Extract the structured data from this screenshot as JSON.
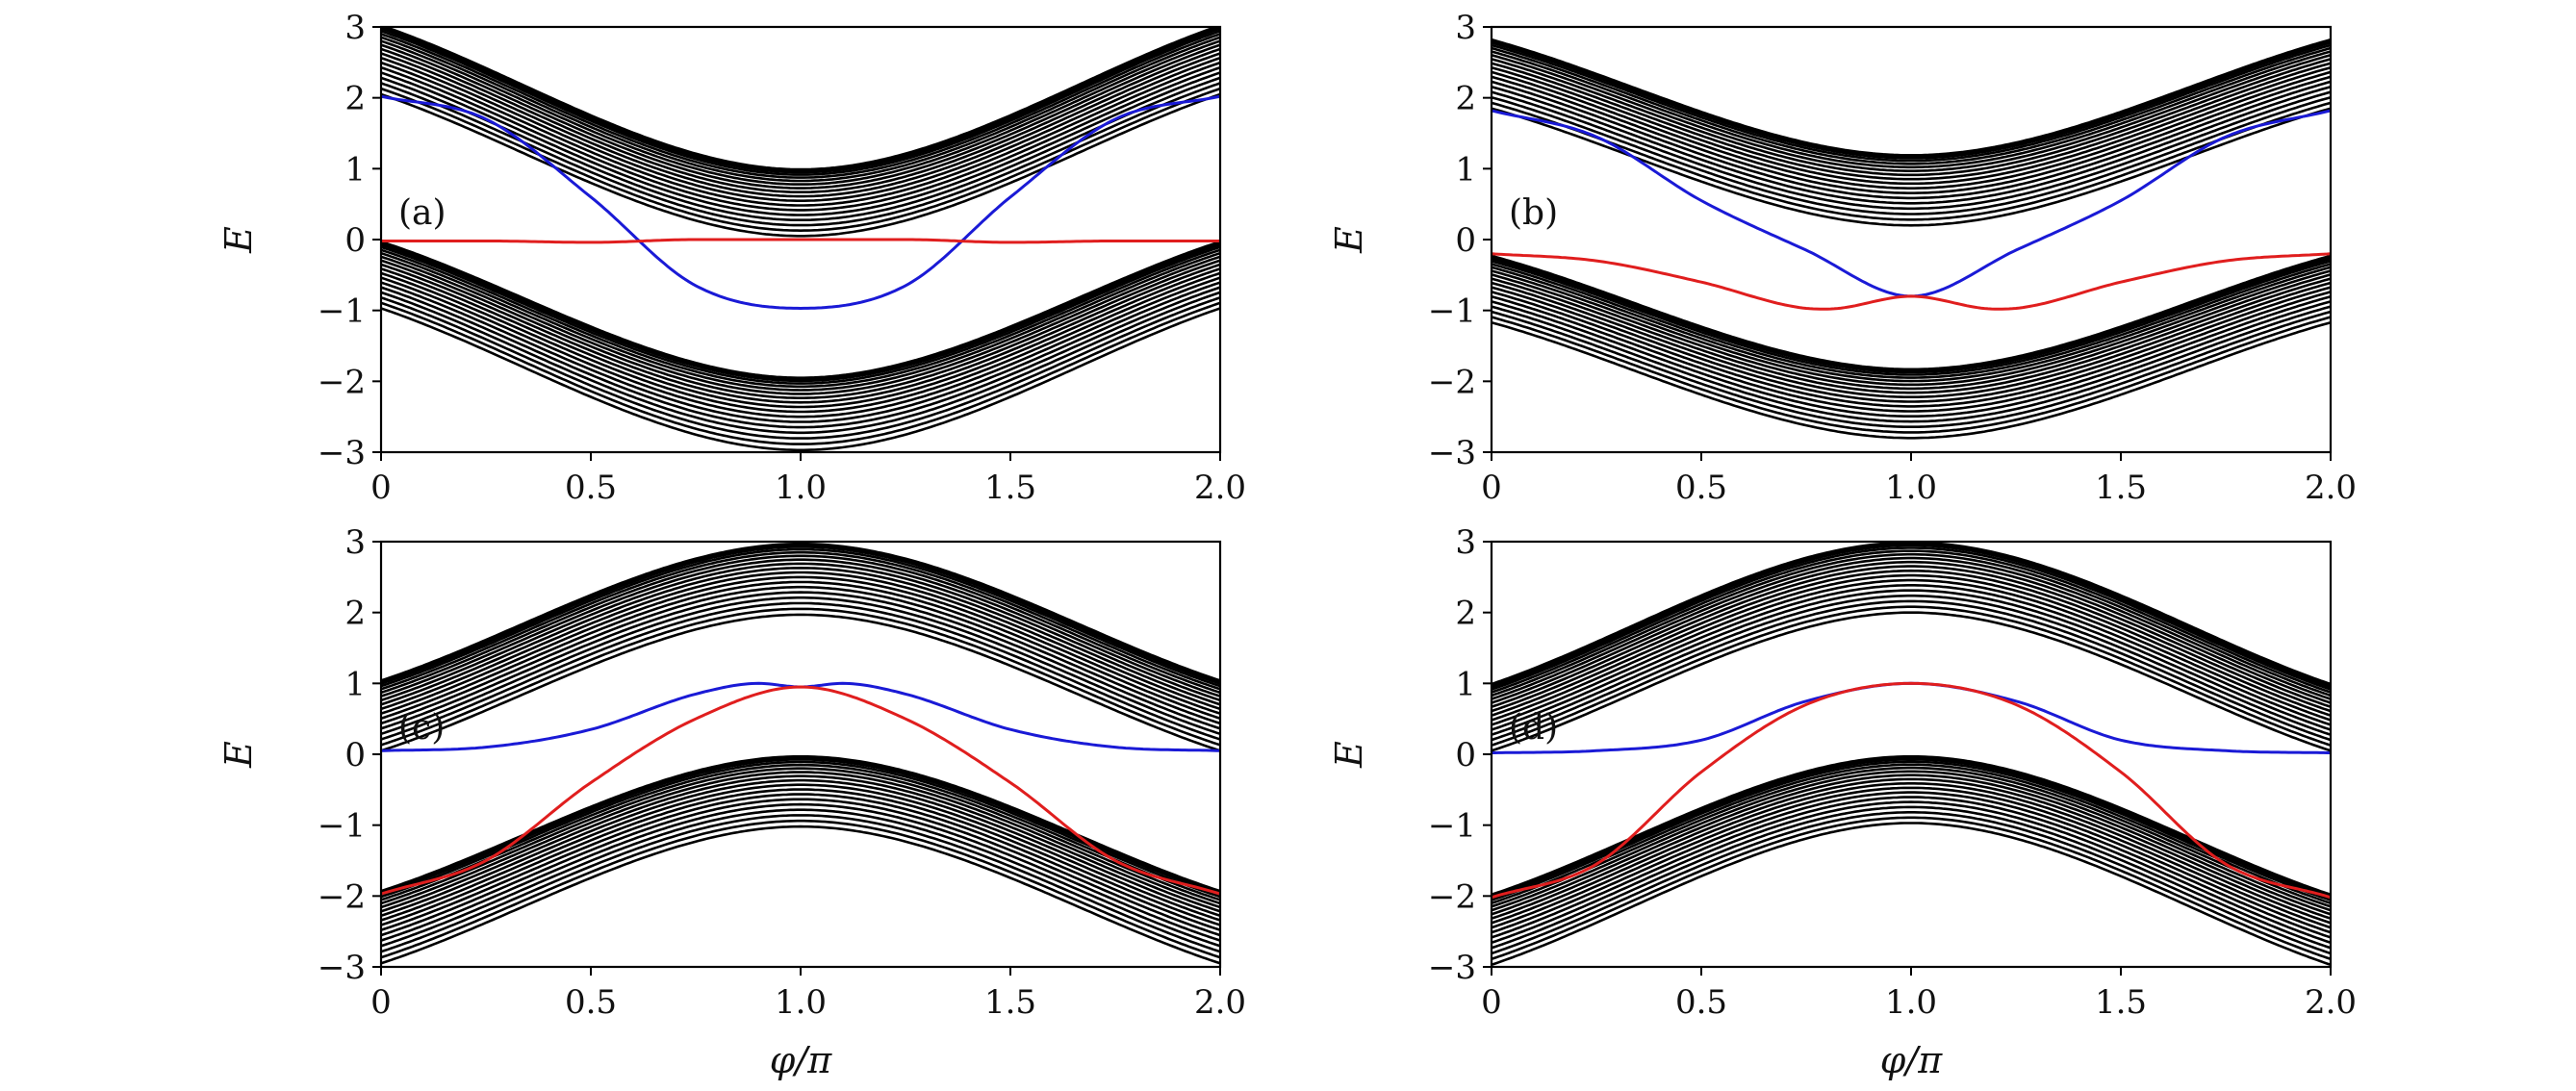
{
  "colors": {
    "bulk": "#000000",
    "edge_blue": "#1a1ad6",
    "edge_red": "#e01e1e"
  },
  "chart_data": [
    {
      "type": "line",
      "panel_label": "(a)",
      "xlabel": "",
      "ylabel": "E",
      "xlim": [
        0,
        2.0
      ],
      "ylim": [
        -3,
        3
      ],
      "xticks": [
        "0",
        "0.5",
        "1.0",
        "1.5",
        "2.0"
      ],
      "yticks": [
        "−3",
        "−2",
        "−1",
        "0",
        "1",
        "2",
        "3"
      ],
      "grid": false,
      "series": [
        {
          "color": "blue",
          "x": [
            0,
            0.25,
            0.5,
            0.75,
            1.0,
            1.25,
            1.5,
            1.75,
            2.0
          ],
          "y": [
            2.02,
            1.7,
            0.6,
            -0.65,
            -0.97,
            -0.65,
            0.6,
            1.7,
            2.02
          ]
        },
        {
          "color": "red",
          "x": [
            0,
            0.25,
            0.5,
            0.75,
            1.0,
            1.25,
            1.5,
            1.75,
            2.0
          ],
          "y": [
            -0.02,
            -0.02,
            -0.04,
            0.0,
            0.0,
            0.0,
            -0.04,
            -0.02,
            -0.02
          ]
        },
        {
          "color": "black",
          "label": "upper bulk bands",
          "x": [
            0,
            1.0,
            2.0
          ],
          "y_top": [
            3.0,
            0.97,
            3.0
          ],
          "y_bottom": [
            2.05,
            0.05,
            2.05
          ]
        },
        {
          "color": "black",
          "label": "lower bulk bands",
          "x": [
            0,
            1.0,
            2.0
          ],
          "y_top": [
            -0.05,
            -1.97,
            -0.05
          ],
          "y_bottom": [
            -0.97,
            -2.97,
            -0.97
          ]
        }
      ]
    },
    {
      "type": "line",
      "panel_label": "(b)",
      "xlabel": "",
      "ylabel": "E",
      "xlim": [
        0,
        2.0
      ],
      "ylim": [
        -3,
        3
      ],
      "xticks": [
        "0",
        "0.5",
        "1.0",
        "1.5",
        "2.0"
      ],
      "yticks": [
        "−3",
        "−2",
        "−1",
        "0",
        "1",
        "2",
        "3"
      ],
      "grid": false,
      "series": [
        {
          "color": "blue",
          "x": [
            0,
            0.25,
            0.5,
            0.75,
            1.0,
            1.25,
            1.5,
            1.75,
            2.0
          ],
          "y": [
            1.82,
            1.45,
            0.55,
            -0.15,
            -0.8,
            -0.15,
            0.55,
            1.45,
            1.82
          ]
        },
        {
          "color": "red",
          "x": [
            0,
            0.25,
            0.5,
            0.75,
            0.8,
            1.0,
            1.2,
            1.25,
            1.5,
            1.75,
            2.0
          ],
          "y": [
            -0.2,
            -0.3,
            -0.6,
            -0.97,
            -0.98,
            -0.8,
            -0.98,
            -0.97,
            -0.6,
            -0.3,
            -0.2
          ]
        },
        {
          "color": "black",
          "label": "upper bulk bands",
          "x": [
            0,
            1.0,
            2.0
          ],
          "y_top": [
            2.8,
            1.17,
            2.8
          ],
          "y_bottom": [
            1.85,
            0.2,
            1.85
          ]
        },
        {
          "color": "black",
          "label": "lower bulk bands",
          "x": [
            0,
            1.0,
            2.0
          ],
          "y_top": [
            -0.25,
            -1.85,
            -0.25
          ],
          "y_bottom": [
            -1.17,
            -2.8,
            -1.17
          ]
        }
      ]
    },
    {
      "type": "line",
      "panel_label": "(c)",
      "xlabel": "φ/π",
      "ylabel": "E",
      "xlim": [
        0,
        2.0
      ],
      "ylim": [
        -3,
        3
      ],
      "xticks": [
        "0",
        "0.5",
        "1.0",
        "1.5",
        "2.0"
      ],
      "yticks": [
        "−3",
        "−2",
        "−1",
        "0",
        "1",
        "2",
        "3"
      ],
      "grid": false,
      "series": [
        {
          "color": "blue",
          "x": [
            0,
            0.25,
            0.5,
            0.75,
            0.9,
            1.0,
            1.1,
            1.25,
            1.5,
            1.75,
            2.0
          ],
          "y": [
            0.05,
            0.1,
            0.35,
            0.85,
            1.0,
            0.95,
            1.0,
            0.85,
            0.35,
            0.1,
            0.05
          ]
        },
        {
          "color": "red",
          "x": [
            0,
            0.25,
            0.5,
            0.75,
            1.0,
            1.25,
            1.5,
            1.75,
            2.0
          ],
          "y": [
            -1.97,
            -1.5,
            -0.4,
            0.5,
            0.95,
            0.5,
            -0.4,
            -1.5,
            -1.97
          ]
        },
        {
          "color": "black",
          "label": "upper bulk bands",
          "x": [
            0,
            1.0,
            2.0
          ],
          "y_top": [
            1.02,
            2.95,
            1.02
          ],
          "y_bottom": [
            0.05,
            1.97,
            0.05
          ]
        },
        {
          "color": "black",
          "label": "lower bulk bands",
          "x": [
            0,
            1.0,
            2.0
          ],
          "y_top": [
            -1.95,
            -0.05,
            -1.95
          ],
          "y_bottom": [
            -2.95,
            -1.02,
            -2.95
          ]
        }
      ]
    },
    {
      "type": "line",
      "panel_label": "(d)",
      "xlabel": "φ/π",
      "ylabel": "E",
      "xlim": [
        0,
        2.0
      ],
      "ylim": [
        -3,
        3
      ],
      "xticks": [
        "0",
        "0.5",
        "1.0",
        "1.5",
        "2.0"
      ],
      "yticks": [
        "−3",
        "−2",
        "−1",
        "0",
        "1",
        "2",
        "3"
      ],
      "grid": false,
      "series": [
        {
          "color": "blue",
          "x": [
            0,
            0.25,
            0.5,
            0.75,
            1.0,
            1.25,
            1.5,
            1.75,
            2.0
          ],
          "y": [
            0.02,
            0.05,
            0.2,
            0.75,
            1.0,
            0.75,
            0.2,
            0.05,
            0.02
          ]
        },
        {
          "color": "red",
          "x": [
            0,
            0.25,
            0.5,
            0.75,
            1.0,
            1.25,
            1.5,
            1.75,
            2.0
          ],
          "y": [
            -2.02,
            -1.55,
            -0.25,
            0.7,
            1.0,
            0.7,
            -0.25,
            -1.55,
            -2.02
          ]
        },
        {
          "color": "black",
          "label": "upper bulk bands",
          "x": [
            0,
            1.0,
            2.0
          ],
          "y_top": [
            0.97,
            2.97,
            0.97
          ],
          "y_bottom": [
            0.05,
            2.0,
            0.05
          ]
        },
        {
          "color": "black",
          "label": "lower bulk bands",
          "x": [
            0,
            1.0,
            2.0
          ],
          "y_top": [
            -2.0,
            -0.05,
            -2.0
          ],
          "y_bottom": [
            -2.97,
            -0.97,
            -2.97
          ]
        }
      ]
    }
  ]
}
